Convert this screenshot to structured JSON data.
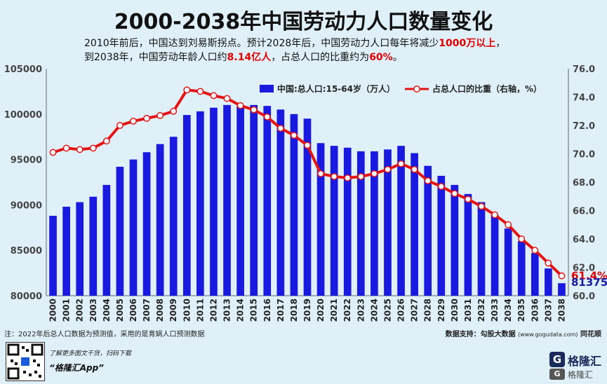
{
  "title": "2000-2038年中国劳动力人口数量变化",
  "subtitle": {
    "line1_a": "2010年前后，中国达到刘易斯拐点。预计2028年后，中国劳动力人口每年将减少",
    "line1_hl": "1000万以上",
    "line1_b": "，",
    "line2_a": "到2038年，中国劳动年龄人口约",
    "line2_hl1": "8.14亿人",
    "line2_b": "，占总人口的比重约为",
    "line2_hl2": "60%",
    "line2_c": "。"
  },
  "footnote_left": "注：2022年后总人口数据为预测值，采用的是育娲人口预测数据",
  "footnote_right": "数据支持：勾股大数据",
  "footnote_right_url": "(www.gogudata.com)",
  "footnote_right_tail": " 同花顺",
  "promo_line1": "了解更多图文干货，扫码下载",
  "promo_line2": "“格隆汇App”",
  "logo_name": "格隆汇",
  "logo_name2": "格隆汇",
  "colors": {
    "bar": "#1919e0",
    "line": "#e41414",
    "accent_red": "#e00000"
  },
  "chart_data": {
    "type": "bar",
    "categories": [
      "2000",
      "2001",
      "2002",
      "2003",
      "2004",
      "2005",
      "2006",
      "2007",
      "2008",
      "2009",
      "2010",
      "2011",
      "2012",
      "2013",
      "2014",
      "2015",
      "2016",
      "2017",
      "2018",
      "2019",
      "2020",
      "2021",
      "2022",
      "2023",
      "2024",
      "2025",
      "2026",
      "2027",
      "2028",
      "2029",
      "2030",
      "2031",
      "2032",
      "2033",
      "2034",
      "2035",
      "2036",
      "2037",
      "2038"
    ],
    "series": [
      {
        "name": "中国:总人口:15-64岁（万人）",
        "type": "bar",
        "axis": "left",
        "values": [
          88800,
          89800,
          90300,
          90900,
          92200,
          94200,
          95000,
          95800,
          96700,
          97500,
          99900,
          100300,
          100700,
          101000,
          100900,
          101000,
          100900,
          100500,
          100000,
          99500,
          96800,
          96500,
          96300,
          95900,
          95900,
          96100,
          96500,
          95700,
          94300,
          93200,
          92200,
          91200,
          90300,
          88900,
          87400,
          86000,
          84700,
          83000,
          81375
        ]
      },
      {
        "name": "占总人口的比重（右轴，%）",
        "type": "line",
        "axis": "right",
        "values": [
          70.1,
          70.4,
          70.3,
          70.4,
          70.9,
          72.0,
          72.3,
          72.5,
          72.7,
          73.0,
          74.5,
          74.4,
          74.1,
          73.9,
          73.4,
          73.1,
          72.6,
          71.8,
          71.3,
          70.6,
          68.6,
          68.4,
          68.3,
          68.4,
          68.6,
          68.9,
          69.3,
          68.9,
          68.1,
          67.7,
          67.2,
          66.8,
          66.3,
          65.7,
          65.0,
          64.0,
          63.2,
          62.3,
          61.4
        ]
      }
    ],
    "ylim_left": [
      80000,
      105000
    ],
    "yticks_left": [
      "80000",
      "85000",
      "90000",
      "95000",
      "100000",
      "105000"
    ],
    "ylim_right": [
      60,
      76
    ],
    "yticks_right": [
      "60.0",
      "62.0",
      "64.0",
      "66.0",
      "68.0",
      "70.0",
      "72.0",
      "74.0",
      "76.0"
    ],
    "last_bar_label": "81375",
    "last_line_label": "61.4%",
    "legend_position": "top-center",
    "grid": false
  }
}
